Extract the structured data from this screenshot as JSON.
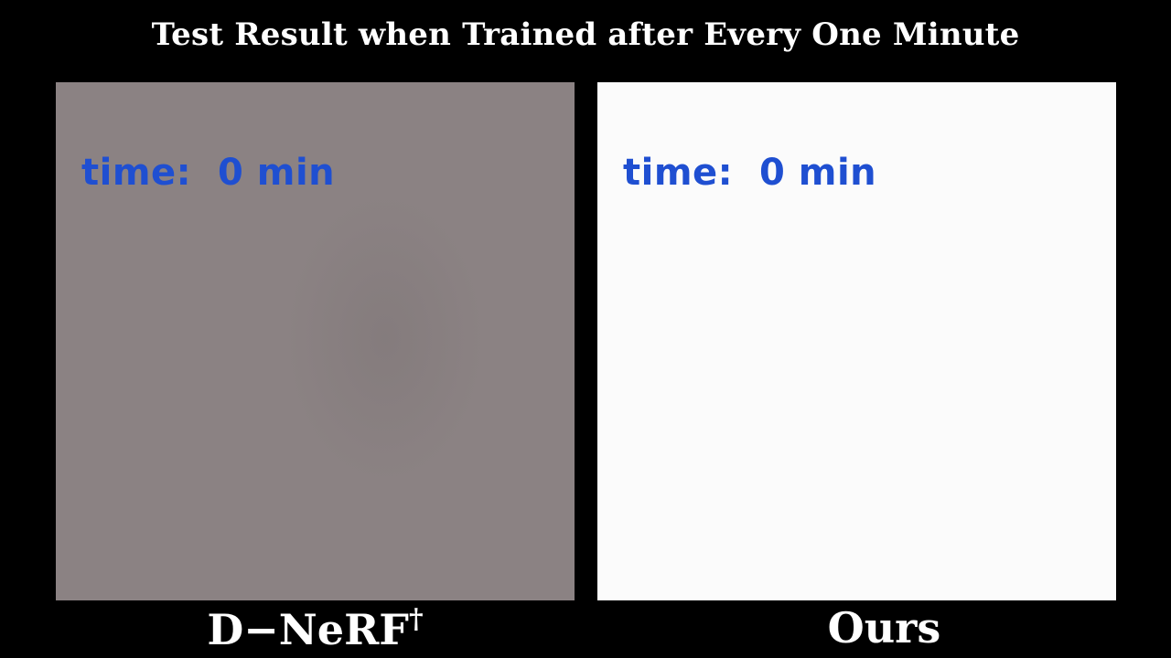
{
  "title": "Test Result when Trained after Every One Minute",
  "panels": [
    {
      "time_prefix": "time:",
      "time_value": "0 min",
      "caption": "D−NeRF",
      "caption_sup": "†"
    },
    {
      "time_prefix": "time:",
      "time_value": "0 min",
      "caption": "Ours"
    }
  ],
  "colors": {
    "background": "#000000",
    "left_panel": "#8b8283",
    "right_panel": "#fbfbfb",
    "time_text": "#1f4fd1"
  }
}
